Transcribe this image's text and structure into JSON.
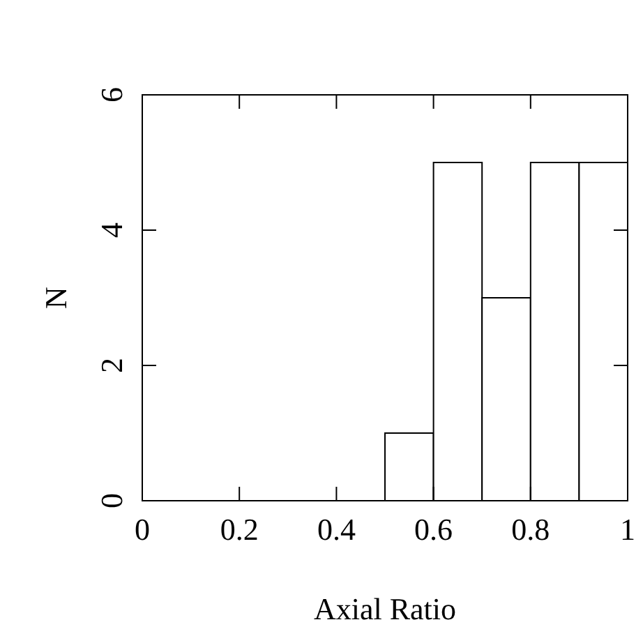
{
  "chart_data": {
    "type": "histogram",
    "xlabel": "Axial Ratio",
    "ylabel": "N",
    "bins": [
      0.5,
      0.6,
      0.7,
      0.8,
      0.9,
      1.0
    ],
    "values": [
      1,
      5,
      3,
      5,
      5
    ],
    "color": "#ffffff",
    "xlim": [
      0,
      1
    ],
    "xticks": [
      0,
      0.2,
      0.4,
      0.6,
      0.8,
      1
    ],
    "ylim": [
      0,
      6
    ],
    "yticks": [
      0,
      2,
      4,
      6
    ],
    "grid": false
  }
}
